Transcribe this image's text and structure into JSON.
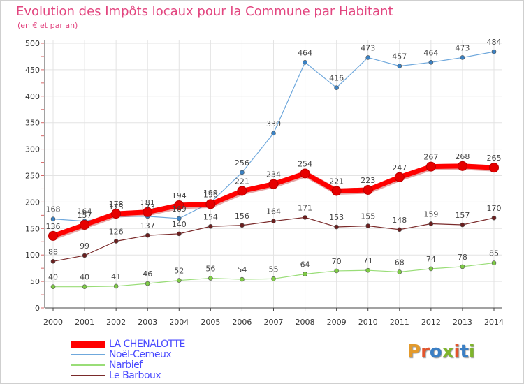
{
  "header": {
    "title": "Evolution des Impôts locaux pour la Commune par Habitant",
    "subtitle": "(en € et par an)"
  },
  "brand": {
    "text": "Proxiti",
    "letter_colors": [
      "#e39a2c",
      "#e3542c",
      "#3b7fc4",
      "#7fb52c",
      "#e3542c",
      "#3b7fc4",
      "#7fb52c"
    ]
  },
  "chart_data": {
    "type": "line",
    "x": [
      "2000",
      "2001",
      "2002",
      "2003",
      "2004",
      "2005",
      "2006",
      "2007",
      "2008",
      "2009",
      "2010",
      "2011",
      "2012",
      "2013",
      "2014"
    ],
    "ylim": [
      0,
      500
    ],
    "yticks": [
      "0",
      "50",
      "100",
      "150",
      "200",
      "250",
      "300",
      "350",
      "400",
      "450",
      "500"
    ],
    "grid": true,
    "legend_position": "bottom-left",
    "series": [
      {
        "name": "LA CHENALOTTE",
        "color": "#ff0000",
        "marker_color": "#e60000",
        "emphasis": "bold",
        "values": [
          136,
          157,
          178,
          181,
          194,
          196,
          221,
          234,
          254,
          221,
          223,
          247,
          267,
          268,
          265
        ],
        "labels": [
          "136",
          "157",
          "178",
          "181",
          "194",
          "196",
          "221",
          "234",
          "254",
          "221",
          "223",
          "247",
          "267",
          "268",
          "265"
        ]
      },
      {
        "name": "Noël-Cerneux",
        "color": "#6fa8dc",
        "marker_color": "#3b82c4",
        "emphasis": "normal",
        "values": [
          168,
          164,
          173,
          173,
          169,
          199,
          256,
          330,
          464,
          416,
          473,
          457,
          464,
          473,
          484
        ],
        "labels": [
          "168",
          "164",
          "173",
          "173",
          "169",
          "199",
          "256",
          "330",
          "464",
          "416",
          "473",
          "457",
          "464",
          "473",
          "484"
        ]
      },
      {
        "name": "Narbief",
        "color": "#99dd77",
        "marker_color": "#7ecb45",
        "emphasis": "normal",
        "values": [
          40,
          40,
          41,
          46,
          52,
          56,
          54,
          55,
          64,
          70,
          71,
          68,
          74,
          78,
          85
        ],
        "labels": [
          "40",
          "40",
          "41",
          "46",
          "52",
          "56",
          "54",
          "55",
          "64",
          "70",
          "71",
          "68",
          "74",
          "78",
          "85"
        ]
      },
      {
        "name": "Le Barboux",
        "color": "#7a2a2a",
        "marker_color": "#6a1f1f",
        "emphasis": "normal",
        "values": [
          88,
          99,
          126,
          137,
          140,
          154,
          156,
          164,
          171,
          153,
          155,
          148,
          159,
          157,
          170
        ],
        "labels": [
          "88",
          "99",
          "126",
          "137",
          "140",
          "154",
          "156",
          "164",
          "171",
          "153",
          "155",
          "148",
          "159",
          "157",
          "170"
        ]
      }
    ]
  }
}
